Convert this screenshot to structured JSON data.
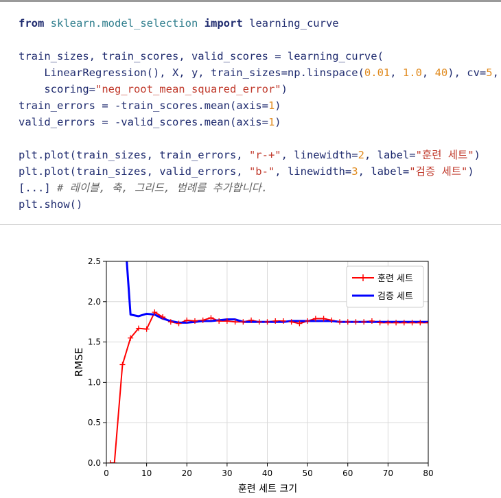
{
  "code": {
    "lines": [
      {
        "segments": [
          {
            "t": "from",
            "c": "kw"
          },
          {
            "t": " "
          },
          {
            "t": "sklearn.model_selection",
            "c": "mod"
          },
          {
            "t": " "
          },
          {
            "t": "import",
            "c": "kw"
          },
          {
            "t": " learning_curve"
          }
        ]
      },
      {
        "segments": []
      },
      {
        "segments": [
          {
            "t": "train_sizes, train_scores, valid_scores = learning_curve("
          }
        ]
      },
      {
        "segments": [
          {
            "t": "    LinearRegression(), X, y, train_sizes=np.linspace("
          },
          {
            "t": "0.01",
            "c": "num"
          },
          {
            "t": ", "
          },
          {
            "t": "1.0",
            "c": "num"
          },
          {
            "t": ", "
          },
          {
            "t": "40",
            "c": "num"
          },
          {
            "t": "), cv="
          },
          {
            "t": "5",
            "c": "num"
          },
          {
            "t": ","
          }
        ]
      },
      {
        "segments": [
          {
            "t": "    scoring="
          },
          {
            "t": "\"neg_root_mean_squared_error\"",
            "c": "str"
          },
          {
            "t": ")"
          }
        ]
      },
      {
        "segments": [
          {
            "t": "train_errors = -train_scores.mean(axis="
          },
          {
            "t": "1",
            "c": "num"
          },
          {
            "t": ")"
          }
        ]
      },
      {
        "segments": [
          {
            "t": "valid_errors = -valid_scores.mean(axis="
          },
          {
            "t": "1",
            "c": "num"
          },
          {
            "t": ")"
          }
        ]
      },
      {
        "segments": []
      },
      {
        "segments": [
          {
            "t": "plt.plot(train_sizes, train_errors, "
          },
          {
            "t": "\"r-+\"",
            "c": "str"
          },
          {
            "t": ", linewidth="
          },
          {
            "t": "2",
            "c": "num"
          },
          {
            "t": ", label="
          },
          {
            "t": "\"훈련 세트\"",
            "c": "str"
          },
          {
            "t": ")"
          }
        ]
      },
      {
        "segments": [
          {
            "t": "plt.plot(train_sizes, valid_errors, "
          },
          {
            "t": "\"b-\"",
            "c": "str"
          },
          {
            "t": ", linewidth="
          },
          {
            "t": "3",
            "c": "num"
          },
          {
            "t": ", label="
          },
          {
            "t": "\"검증 세트\"",
            "c": "str"
          },
          {
            "t": ")"
          }
        ]
      },
      {
        "segments": [
          {
            "t": "[...] "
          },
          {
            "t": "# 레이블, 축, 그리드, 범례를 추가합니다.",
            "c": "comment"
          }
        ]
      },
      {
        "segments": [
          {
            "t": "plt.show()"
          }
        ]
      }
    ]
  },
  "chart_data": {
    "type": "line",
    "xlabel": "훈련 세트 크기",
    "ylabel": "RMSE",
    "xlim": [
      0,
      80
    ],
    "ylim": [
      0.0,
      2.5
    ],
    "xticks": [
      "0",
      "10",
      "20",
      "30",
      "40",
      "50",
      "60",
      "70",
      "80"
    ],
    "yticks": [
      "0.0",
      "0.5",
      "1.0",
      "1.5",
      "2.0",
      "2.5"
    ],
    "grid": true,
    "legend_position": "top-right",
    "series": [
      {
        "name": "훈련 세트",
        "color": "#ff0000",
        "marker": "+",
        "x": [
          1,
          2,
          4,
          6,
          8,
          10,
          12,
          14,
          16,
          18,
          20,
          22,
          24,
          26,
          28,
          30,
          32,
          34,
          36,
          38,
          40,
          42,
          44,
          46,
          48,
          50,
          52,
          54,
          56,
          58,
          60,
          62,
          64,
          66,
          68,
          70,
          72,
          74,
          76,
          78,
          80
        ],
        "y": [
          0.0,
          0.0,
          1.22,
          1.55,
          1.67,
          1.66,
          1.87,
          1.81,
          1.75,
          1.73,
          1.77,
          1.76,
          1.77,
          1.8,
          1.76,
          1.76,
          1.75,
          1.75,
          1.77,
          1.75,
          1.75,
          1.76,
          1.76,
          1.75,
          1.73,
          1.76,
          1.79,
          1.79,
          1.77,
          1.75,
          1.75,
          1.75,
          1.75,
          1.76,
          1.74,
          1.74,
          1.74,
          1.74,
          1.74,
          1.74,
          1.74
        ]
      },
      {
        "name": "검증 세트",
        "color": "#0000ff",
        "marker": "",
        "x": [
          1,
          2,
          4,
          5,
          6,
          8,
          10,
          12,
          14,
          16,
          18,
          20,
          22,
          24,
          26,
          28,
          30,
          32,
          34,
          36,
          38,
          40,
          42,
          44,
          46,
          48,
          50,
          52,
          54,
          56,
          58,
          60,
          62,
          64,
          66,
          68,
          70,
          72,
          74,
          76,
          78,
          80
        ],
        "y": [
          2.55,
          2.52,
          2.55,
          2.55,
          1.84,
          1.82,
          1.85,
          1.84,
          1.79,
          1.76,
          1.74,
          1.74,
          1.75,
          1.76,
          1.76,
          1.77,
          1.78,
          1.78,
          1.75,
          1.75,
          1.75,
          1.75,
          1.75,
          1.75,
          1.76,
          1.76,
          1.76,
          1.76,
          1.76,
          1.76,
          1.75,
          1.75,
          1.75,
          1.75,
          1.75,
          1.75,
          1.75,
          1.75,
          1.75,
          1.75,
          1.75,
          1.75
        ]
      }
    ]
  }
}
